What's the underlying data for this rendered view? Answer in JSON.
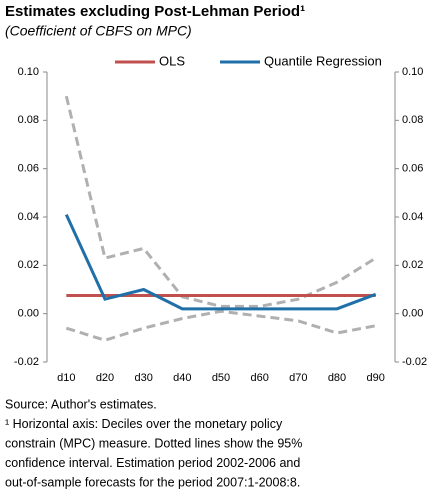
{
  "chart_data": {
    "type": "line",
    "title": "Estimates excluding Post-Lehman Period¹",
    "subtitle": "(Coefficient of CBFS on MPC)",
    "categories": [
      "d10",
      "d20",
      "d30",
      "d40",
      "d50",
      "d60",
      "d70",
      "d80",
      "d90"
    ],
    "series": [
      {
        "name": "OLS",
        "color": "#c0504d",
        "style": "solid",
        "values": [
          0.0075,
          0.0075,
          0.0075,
          0.0075,
          0.0075,
          0.0075,
          0.0075,
          0.0075,
          0.0075
        ]
      },
      {
        "name": "Quantile Regression",
        "color": "#1f6fa8",
        "style": "solid",
        "values": [
          0.041,
          0.006,
          0.01,
          0.002,
          0.002,
          0.002,
          0.002,
          0.002,
          0.008
        ]
      },
      {
        "color": "#b0b0b0",
        "style": "dashed",
        "values": [
          0.09,
          0.023,
          0.027,
          0.007,
          0.003,
          0.003,
          0.006,
          0.013,
          0.023
        ]
      },
      {
        "color": "#b0b0b0",
        "style": "dashed",
        "values": [
          -0.006,
          -0.011,
          -0.006,
          -0.002,
          0.001,
          -0.001,
          -0.003,
          -0.008,
          -0.005
        ]
      }
    ],
    "ylim": [
      -0.02,
      0.1
    ],
    "yticks": [
      {
        "value": -0.02,
        "label": "-0.02"
      },
      {
        "value": 0,
        "label": "0.00"
      },
      {
        "value": 0.02,
        "label": "0.02"
      },
      {
        "value": 0.04,
        "label": "0.04"
      },
      {
        "value": 0.06,
        "label": "0.06"
      },
      {
        "value": 0.08,
        "label": "0.08"
      },
      {
        "value": 0.1,
        "label": "0.10"
      }
    ],
    "y2lim": [
      -0.02,
      0.1
    ],
    "y2ticks": [
      {
        "value": -0.02,
        "label": "-0.02"
      },
      {
        "value": 0,
        "label": "0.00"
      },
      {
        "value": 0.02,
        "label": "0.02"
      },
      {
        "value": 0.04,
        "label": "0.04"
      },
      {
        "value": 0.06,
        "label": "0.06"
      },
      {
        "value": 0.08,
        "label": "0.08"
      },
      {
        "value": 0.1,
        "label": "0.10"
      }
    ],
    "legend": "top",
    "notes": [
      "Source: Author's estimates.",
      "¹ Horizontal axis:  Deciles over the monetary policy",
      "constrain (MPC) measure.  Dotted lines show the 95%",
      "confidence interval.  Estimation period 2002-2006 and",
      "out-of-sample forecasts for the period 2007:1-2008:8."
    ]
  }
}
